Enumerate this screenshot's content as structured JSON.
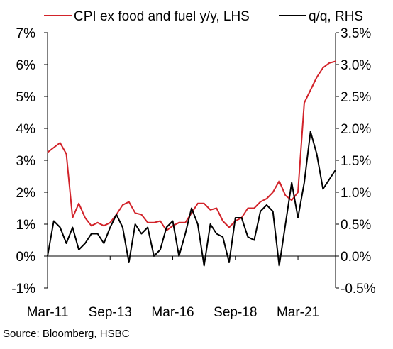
{
  "source_note": "Source: Bloomberg, HSBC",
  "chart_data": {
    "type": "line",
    "title": "",
    "legend_placement": "top",
    "grid": false,
    "x_tick_labels": [
      "Mar-11",
      "Sep-13",
      "Mar-16",
      "Sep-18",
      "Mar-21"
    ],
    "x_tick_positions": [
      "2011-03",
      "2013-09",
      "2016-03",
      "2018-09",
      "2021-03"
    ],
    "x_range": [
      "2011-03",
      "2022-09"
    ],
    "y_left": {
      "ylim": [
        -1,
        7
      ],
      "ticks": [
        -1,
        0,
        1,
        2,
        3,
        4,
        5,
        6,
        7
      ],
      "tick_labels": [
        "-1%",
        "0%",
        "1%",
        "2%",
        "3%",
        "4%",
        "5%",
        "6%",
        "7%"
      ]
    },
    "y_right": {
      "ylim": [
        -0.5,
        3.5
      ],
      "ticks": [
        -0.5,
        0,
        0.5,
        1,
        1.5,
        2,
        2.5,
        3,
        3.5
      ],
      "tick_labels": [
        "-0.5%",
        "0.0%",
        "0.5%",
        "1.0%",
        "1.5%",
        "2.0%",
        "2.5%",
        "3.0%",
        "3.5%"
      ]
    },
    "series": [
      {
        "name": "CPI ex food and fuel y/y, LHS",
        "axis": "left",
        "color": "#d2232a",
        "x": [
          "2011-03",
          "2011-06",
          "2011-09",
          "2011-12",
          "2012-03",
          "2012-06",
          "2012-09",
          "2012-12",
          "2013-03",
          "2013-06",
          "2013-09",
          "2013-12",
          "2014-03",
          "2014-06",
          "2014-09",
          "2014-12",
          "2015-03",
          "2015-06",
          "2015-09",
          "2015-12",
          "2016-03",
          "2016-06",
          "2016-09",
          "2016-12",
          "2017-03",
          "2017-06",
          "2017-09",
          "2017-12",
          "2018-03",
          "2018-06",
          "2018-09",
          "2018-12",
          "2019-03",
          "2019-06",
          "2019-09",
          "2019-12",
          "2020-03",
          "2020-06",
          "2020-09",
          "2020-12",
          "2021-03",
          "2021-06",
          "2021-09",
          "2021-12",
          "2022-03",
          "2022-06",
          "2022-09"
        ],
        "values": [
          3.25,
          3.4,
          3.55,
          3.2,
          1.2,
          1.65,
          1.2,
          0.95,
          1.05,
          0.95,
          1.05,
          1.3,
          1.6,
          1.7,
          1.35,
          1.3,
          1.05,
          1.05,
          1.1,
          0.8,
          0.95,
          1.05,
          1.05,
          1.35,
          1.65,
          1.65,
          1.45,
          1.5,
          1.1,
          0.9,
          1.1,
          1.2,
          1.5,
          1.5,
          1.7,
          1.8,
          2.0,
          2.35,
          1.9,
          1.75,
          2.0,
          4.8,
          5.2,
          5.6,
          5.9,
          6.05,
          6.1
        ]
      },
      {
        "name": "q/q, RHS",
        "axis": "right",
        "color": "#000000",
        "x": [
          "2011-03",
          "2011-06",
          "2011-09",
          "2011-12",
          "2012-03",
          "2012-06",
          "2012-09",
          "2012-12",
          "2013-03",
          "2013-06",
          "2013-09",
          "2013-12",
          "2014-03",
          "2014-06",
          "2014-09",
          "2014-12",
          "2015-03",
          "2015-06",
          "2015-09",
          "2015-12",
          "2016-03",
          "2016-06",
          "2016-09",
          "2016-12",
          "2017-03",
          "2017-06",
          "2017-09",
          "2017-12",
          "2018-03",
          "2018-06",
          "2018-09",
          "2018-12",
          "2019-03",
          "2019-06",
          "2019-09",
          "2019-12",
          "2020-03",
          "2020-06",
          "2020-09",
          "2020-12",
          "2021-03",
          "2021-06",
          "2021-09",
          "2021-12",
          "2022-03",
          "2022-06",
          "2022-09"
        ],
        "values": [
          0.0,
          0.55,
          0.45,
          0.2,
          0.45,
          0.1,
          0.2,
          0.35,
          0.35,
          0.2,
          0.45,
          0.65,
          0.45,
          -0.1,
          0.5,
          0.35,
          0.45,
          0.0,
          0.1,
          0.45,
          0.55,
          0.0,
          0.35,
          0.75,
          0.5,
          -0.15,
          0.5,
          0.35,
          0.3,
          -0.1,
          0.6,
          0.6,
          0.3,
          0.25,
          0.7,
          0.8,
          0.7,
          -0.15,
          0.5,
          1.15,
          0.6,
          1.15,
          1.95,
          1.6,
          1.05,
          1.2,
          1.35
        ]
      }
    ]
  }
}
